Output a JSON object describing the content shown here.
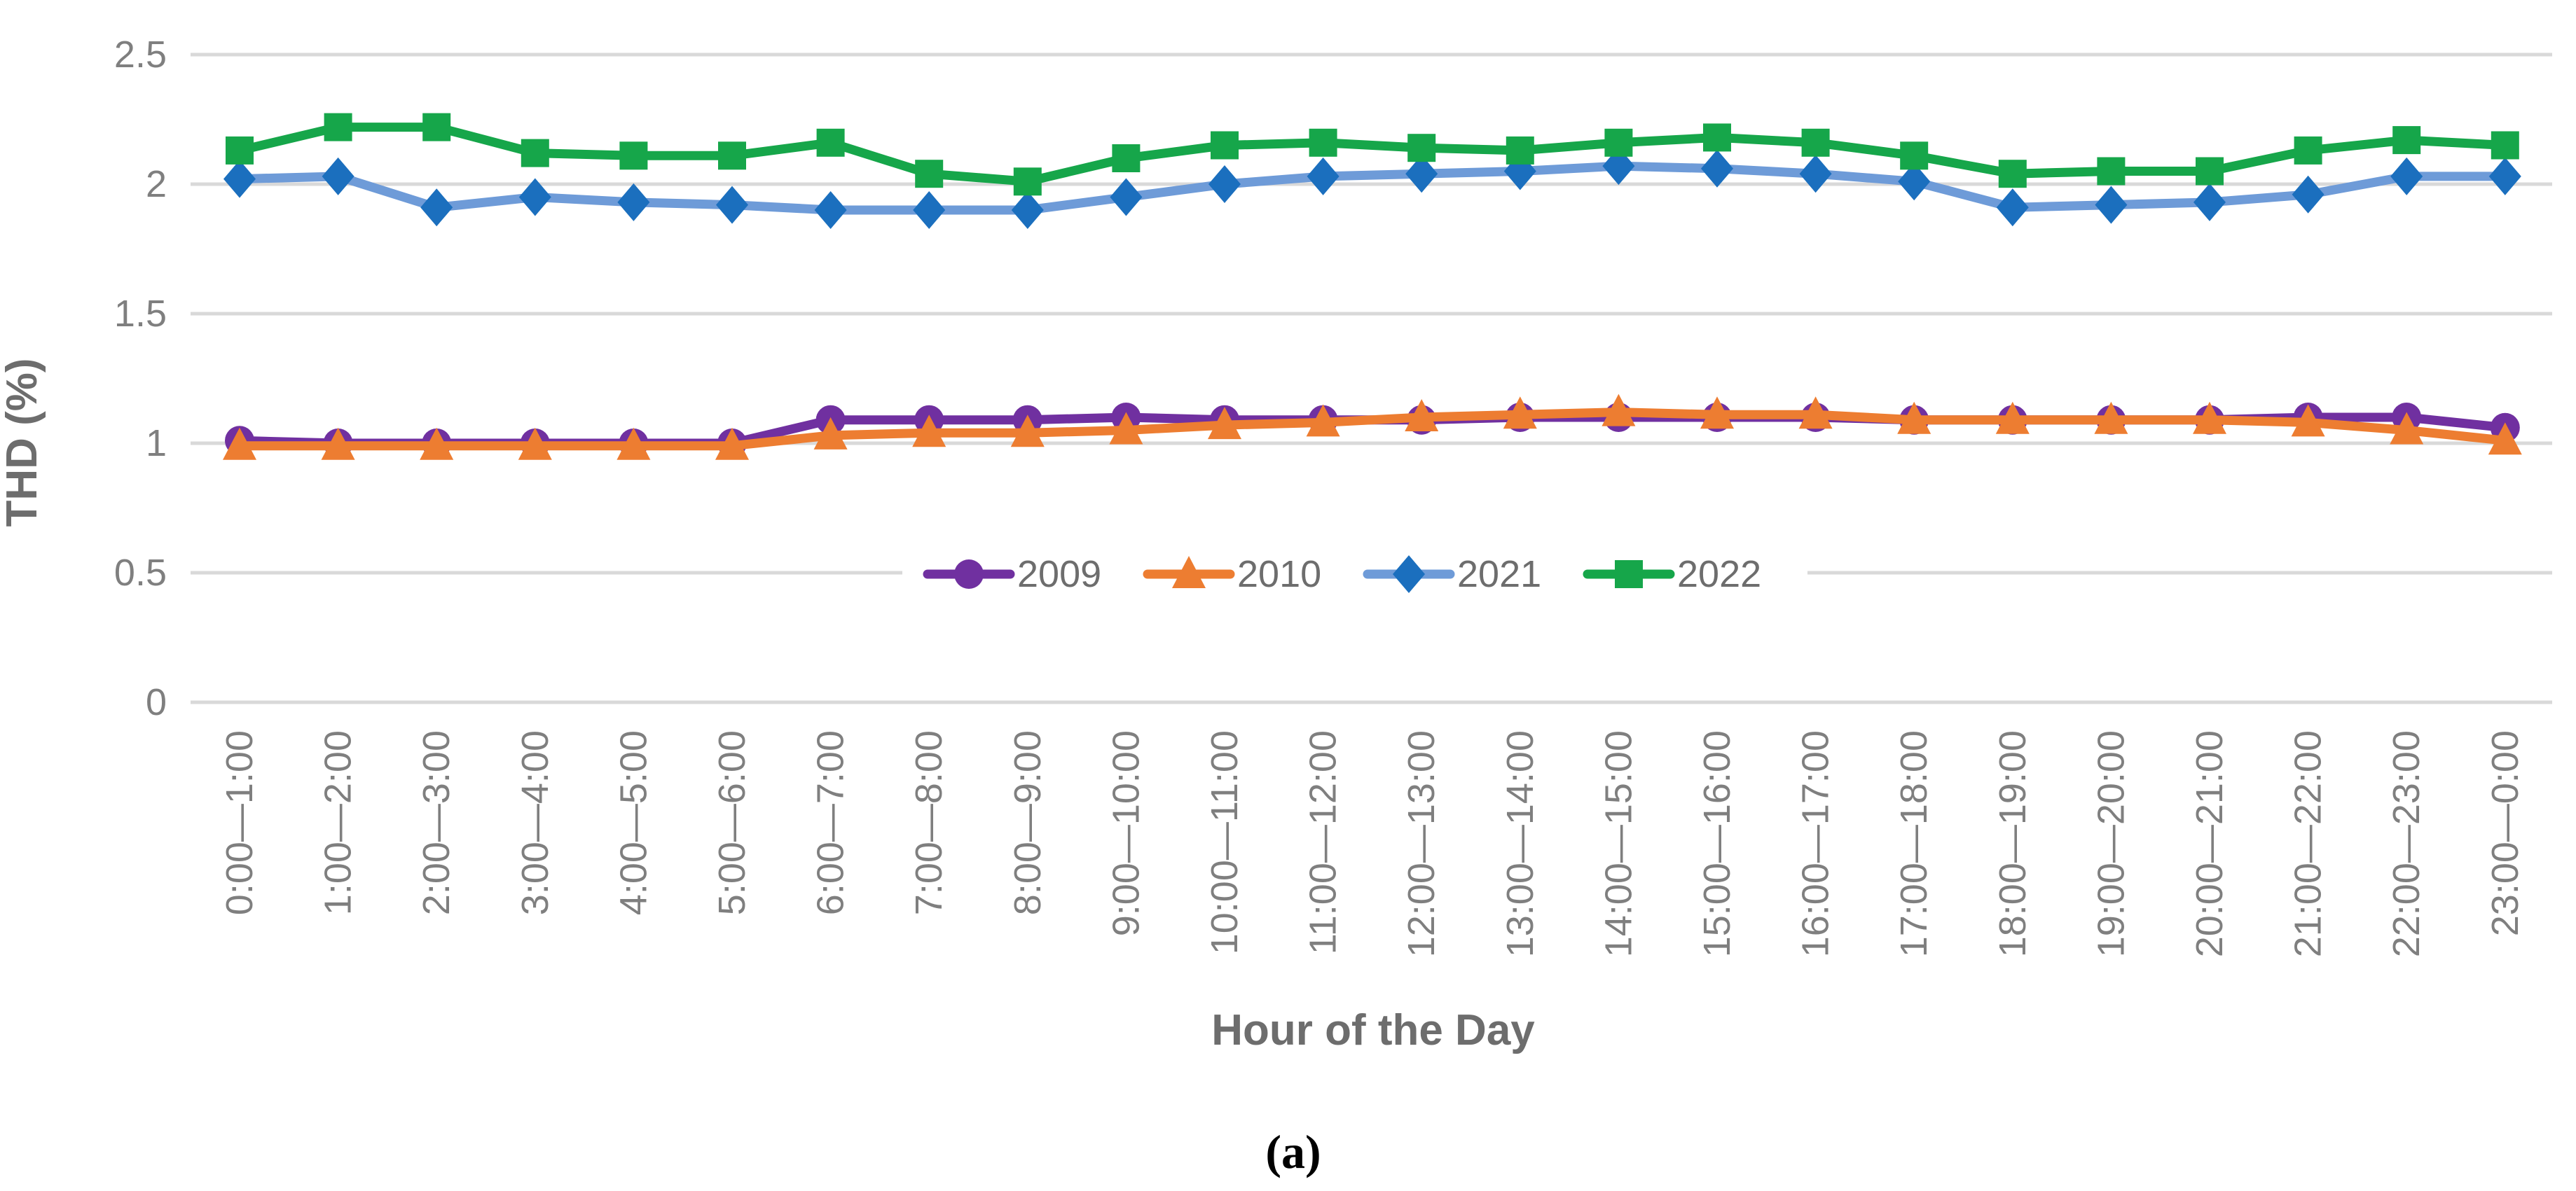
{
  "figure": {
    "caption": "(a)"
  },
  "chart_data": {
    "type": "line",
    "title": "",
    "xlabel": "Hour of the Day",
    "ylabel": "THD (%)",
    "ylim": [
      0,
      2.5
    ],
    "yticks": [
      0,
      0.5,
      1,
      1.5,
      2,
      2.5
    ],
    "grid": true,
    "gridline_color": "#d9d9d9",
    "tick_color": "#7f7f7f",
    "legend_position": "center-overlay-on-0.5-gridline",
    "categories": [
      "0:00—1:00",
      "1:00—2:00",
      "2:00—3:00",
      "3:00—4:00",
      "4:00—5:00",
      "5:00—6:00",
      "6:00—7:00",
      "7:00—8:00",
      "8:00—9:00",
      "9:00—10:00",
      "10:00—11:00",
      "11:00—12:00",
      "12:00—13:00",
      "13:00—14:00",
      "14:00—15:00",
      "15:00—16:00",
      "16:00—17:00",
      "17:00—18:00",
      "18:00—19:00",
      "19:00—20:00",
      "20:00—21:00",
      "21:00—22:00",
      "22:00—23:00",
      "23:00—0:00"
    ],
    "series": [
      {
        "name": "2009",
        "marker": "circle",
        "color": "#7030a0",
        "line_color": "#7030a0",
        "values": [
          1.01,
          1.0,
          1.0,
          1.0,
          1.0,
          1.0,
          1.09,
          1.09,
          1.09,
          1.1,
          1.09,
          1.09,
          1.09,
          1.1,
          1.1,
          1.1,
          1.1,
          1.09,
          1.09,
          1.09,
          1.09,
          1.1,
          1.1,
          1.06
        ]
      },
      {
        "name": "2010",
        "marker": "triangle",
        "color": "#ed7d31",
        "line_color": "#ed7d31",
        "values": [
          0.99,
          0.99,
          0.99,
          0.99,
          0.99,
          0.99,
          1.03,
          1.04,
          1.04,
          1.05,
          1.07,
          1.08,
          1.1,
          1.11,
          1.12,
          1.11,
          1.11,
          1.09,
          1.09,
          1.09,
          1.09,
          1.08,
          1.05,
          1.01
        ]
      },
      {
        "name": "2021",
        "marker": "diamond",
        "color": "#1b6fbe",
        "line_color": "#6e9bd8",
        "values": [
          2.02,
          2.03,
          1.91,
          1.95,
          1.93,
          1.92,
          1.9,
          1.9,
          1.9,
          1.95,
          2.0,
          2.03,
          2.04,
          2.05,
          2.07,
          2.06,
          2.04,
          2.01,
          1.91,
          1.92,
          1.93,
          1.96,
          2.03,
          2.03
        ]
      },
      {
        "name": "2022",
        "marker": "square",
        "color": "#16a64a",
        "line_color": "#16a64a",
        "values": [
          2.13,
          2.22,
          2.22,
          2.12,
          2.11,
          2.11,
          2.16,
          2.04,
          2.01,
          2.1,
          2.15,
          2.16,
          2.14,
          2.13,
          2.16,
          2.18,
          2.16,
          2.11,
          2.04,
          2.05,
          2.05,
          2.13,
          2.17,
          2.15
        ]
      }
    ]
  }
}
